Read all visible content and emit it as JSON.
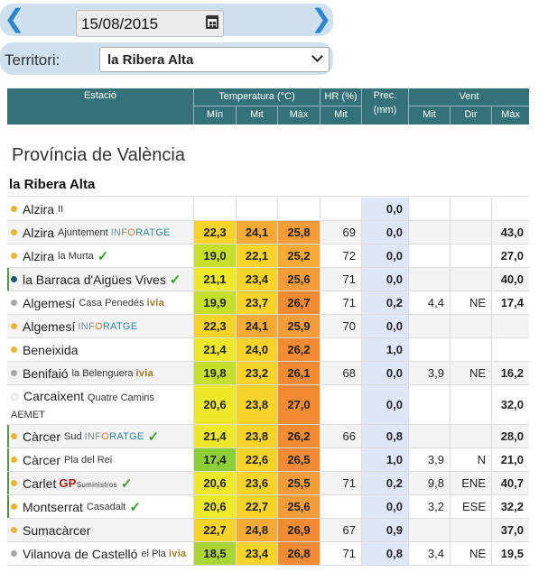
{
  "date_bar": {
    "date": "15/08/2015",
    "prev_label": "❮",
    "next_label": "❯"
  },
  "territory": {
    "label": "Territori:",
    "selected": "la Ribera Alta"
  },
  "table_header": {
    "station": "Estació",
    "temperature": "Temperatura (°C)",
    "hr": "HR (%)",
    "prec": "Prec. (mm)",
    "wind": "Vent",
    "t_min": "Mín",
    "t_mit": "Mit",
    "t_max": "Màx",
    "hr_mit": "Mit",
    "w_mit": "Mit",
    "w_dir": "Dir",
    "w_max": "Màx"
  },
  "province_title": "Província de València",
  "territory_title": "la Ribera Alta",
  "colors": {
    "header_bg": "#347178",
    "prec_bg": "#dfe6f7",
    "check": "#3b9c2e"
  },
  "rows": [
    {
      "name": "Alzira",
      "sub": "II",
      "dot": "#e8b436",
      "min": "",
      "mit": "",
      "max": "",
      "hr": "",
      "prec": "0,0",
      "w_mit": "",
      "w_dir": "",
      "w_max": "",
      "min_color": "",
      "mit_color": "",
      "max_color": ""
    },
    {
      "name": "Alzira",
      "sub": "Ajuntement",
      "brand": "inforatge",
      "brand_text": [
        "INF",
        "O",
        "RATGE"
      ],
      "dot": "#e8b436",
      "min": "22,3",
      "mit": "24,1",
      "max": "25,8",
      "hr": "69",
      "prec": "0,0",
      "w_mit": "",
      "w_dir": "",
      "w_max": "43,0",
      "min_color": "#f8d32a",
      "mit_color": "#f5aa36",
      "max_color": "#f39c3a"
    },
    {
      "name": "Alzira",
      "sub": "la Murta",
      "check": true,
      "dot": "#e8b436",
      "min": "19,0",
      "mit": "22,1",
      "max": "25,2",
      "hr": "72",
      "prec": "0,0",
      "w_mit": "",
      "w_dir": "",
      "w_max": "27,0",
      "min_color": "#c6df2a",
      "mit_color": "#f8d32a",
      "max_color": "#f5aa36"
    },
    {
      "name": "la Barraca d'Aigües Vives",
      "check": true,
      "dot": "#1d5b6a",
      "bar": true,
      "min": "21,1",
      "mit": "23,4",
      "max": "25,6",
      "hr": "71",
      "prec": "0,0",
      "w_mit": "",
      "w_dir": "",
      "w_max": "40,0",
      "min_color": "#eee82a",
      "mit_color": "#f8d32a",
      "max_color": "#f39c3a"
    },
    {
      "name": "Algemesí",
      "sub": "Casa Penedés",
      "brand": "ivia",
      "brand_text": [
        "ivia"
      ],
      "dot": "#a8a8a8",
      "min": "19,9",
      "mit": "23,7",
      "max": "26,7",
      "hr": "71",
      "prec": "0,2",
      "w_mit": "4,4",
      "w_dir": "NE",
      "w_max": "17,4",
      "min_color": "#c6df2a",
      "mit_color": "#f8d32a",
      "max_color": "#f08a33"
    },
    {
      "name": "Algemesí",
      "brand": "inforatge",
      "brand_text": [
        "INF",
        "O",
        "RATGE"
      ],
      "dot": "#e8b436",
      "min": "22,3",
      "mit": "24,1",
      "max": "25,9",
      "hr": "70",
      "prec": "0,0",
      "w_mit": "",
      "w_dir": "",
      "w_max": "",
      "min_color": "#f8d32a",
      "mit_color": "#f5aa36",
      "max_color": "#f39c3a"
    },
    {
      "name": "Beneixida",
      "dot": "#e8b436",
      "min": "21,4",
      "mit": "24,0",
      "max": "26,2",
      "hr": "",
      "prec": "1,0",
      "w_mit": "",
      "w_dir": "",
      "w_max": "",
      "min_color": "#eee82a",
      "mit_color": "#f8d32a",
      "max_color": "#f08a33"
    },
    {
      "name": "Benifaió",
      "sub": "la Belenguera",
      "brand": "ivia",
      "brand_text": [
        "ivia"
      ],
      "dot": "#a8a8a8",
      "min": "19,8",
      "mit": "23,2",
      "max": "26,1",
      "hr": "68",
      "prec": "0,0",
      "w_mit": "3,9",
      "w_dir": "NE",
      "w_max": "16,2",
      "min_color": "#c6df2a",
      "mit_color": "#f8d32a",
      "max_color": "#f08a33"
    },
    {
      "name": "Carcaixent",
      "sub": "Quatre Camins",
      "line2": "AEMET",
      "dot": "ring",
      "two": true,
      "min": "20,6",
      "mit": "23,8",
      "max": "27,0",
      "hr": "",
      "prec": "0,0",
      "w_mit": "",
      "w_dir": "",
      "w_max": "32,0",
      "min_color": "#eee82a",
      "mit_color": "#f8d32a",
      "max_color": "#f08a33"
    },
    {
      "name": "Càrcer",
      "sub": "Sud",
      "brand": "inforatge",
      "brand_text": [
        "INF",
        "O",
        "RATGE"
      ],
      "check": true,
      "dot": "#e8b436",
      "bar": true,
      "min": "21,4",
      "mit": "23,8",
      "max": "26,2",
      "hr": "66",
      "prec": "0,8",
      "w_mit": "",
      "w_dir": "",
      "w_max": "28,0",
      "min_color": "#eee82a",
      "mit_color": "#f8d32a",
      "max_color": "#f08a33"
    },
    {
      "name": "Càrcer",
      "sub": "Pla del Rei",
      "dot": "#e8b436",
      "bar": true,
      "min": "17,4",
      "mit": "22,6",
      "max": "26,5",
      "hr": "",
      "prec": "1,0",
      "w_mit": "3,9",
      "w_dir": "N",
      "w_max": "21,0",
      "min_color": "#8ccf35",
      "mit_color": "#f8d32a",
      "max_color": "#f08a33"
    },
    {
      "name": "Carlet",
      "brand": "gp",
      "brand_text": [
        "GP",
        "Suministros"
      ],
      "check": true,
      "dot": "#e8b436",
      "bar": true,
      "min": "20,6",
      "mit": "23,6",
      "max": "25,5",
      "hr": "71",
      "prec": "0,2",
      "w_mit": "9,8",
      "w_dir": "ENE",
      "w_max": "40,7",
      "min_color": "#eee82a",
      "mit_color": "#f8d32a",
      "max_color": "#f39c3a"
    },
    {
      "name": "Montserrat",
      "sub": "Casadalt",
      "check": true,
      "dot": "#e8b436",
      "bar": true,
      "min": "20,6",
      "mit": "22,7",
      "max": "25,6",
      "hr": "",
      "prec": "0,0",
      "w_mit": "3,2",
      "w_dir": "ESE",
      "w_max": "32,2",
      "min_color": "#eee82a",
      "mit_color": "#f8d32a",
      "max_color": "#f39c3a"
    },
    {
      "name": "Sumacàrcer",
      "dot": "#e8b436",
      "min": "22,7",
      "mit": "24,8",
      "max": "26,9",
      "hr": "67",
      "prec": "0,9",
      "w_mit": "",
      "w_dir": "",
      "w_max": "37,0",
      "min_color": "#f8d32a",
      "mit_color": "#f5aa36",
      "max_color": "#f08a33"
    },
    {
      "name": "Vilanova de Castelló",
      "sub": "el Pla",
      "brand": "ivia",
      "brand_text": [
        "ivia"
      ],
      "dot": "#a8a8a8",
      "min": "18,5",
      "mit": "23,4",
      "max": "26,8",
      "hr": "71",
      "prec": "0,8",
      "w_mit": "3,4",
      "w_dir": "NE",
      "w_max": "19,5",
      "min_color": "#a9d632",
      "mit_color": "#f8d32a",
      "max_color": "#f08a33"
    }
  ]
}
